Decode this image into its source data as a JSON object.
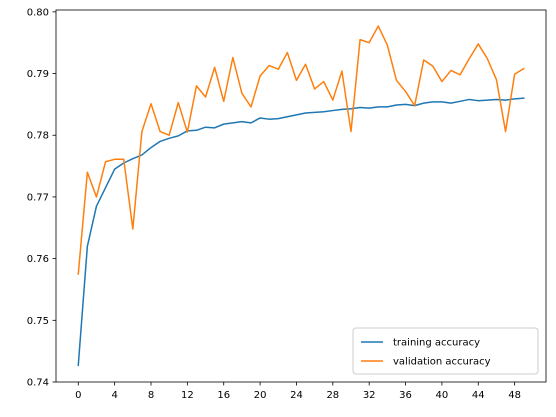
{
  "chart_data": {
    "type": "line",
    "x": [
      0,
      1,
      2,
      3,
      4,
      5,
      6,
      7,
      8,
      9,
      10,
      11,
      12,
      13,
      14,
      15,
      16,
      17,
      18,
      19,
      20,
      21,
      22,
      23,
      24,
      25,
      26,
      27,
      28,
      29,
      30,
      31,
      32,
      33,
      34,
      35,
      36,
      37,
      38,
      39,
      40,
      41,
      42,
      43,
      44,
      45,
      46,
      47,
      48,
      49
    ],
    "xticks": [
      0,
      4,
      8,
      12,
      16,
      20,
      24,
      28,
      32,
      36,
      40,
      44,
      48
    ],
    "yticks": [
      0.74,
      0.75,
      0.76,
      0.77,
      0.78,
      0.79,
      0.8
    ],
    "ytick_labels": [
      "0.74",
      "0.75",
      "0.76",
      "0.77",
      "0.78",
      "0.79",
      "0.80"
    ],
    "xlim": [
      -2.45,
      51.45
    ],
    "ylim": [
      0.74,
      0.8003
    ],
    "grid": false,
    "legend_position": "lower right",
    "series": [
      {
        "name": "training accuracy",
        "color": "#1f77b4",
        "values": [
          0.7427,
          0.762,
          0.7685,
          0.7715,
          0.7745,
          0.7755,
          0.7762,
          0.7768,
          0.778,
          0.779,
          0.7795,
          0.7799,
          0.7807,
          0.7808,
          0.7813,
          0.7812,
          0.7818,
          0.782,
          0.7822,
          0.782,
          0.7828,
          0.7826,
          0.7827,
          0.783,
          0.7833,
          0.7836,
          0.7837,
          0.7838,
          0.784,
          0.7842,
          0.7843,
          0.7845,
          0.7844,
          0.7846,
          0.7846,
          0.7849,
          0.785,
          0.7848,
          0.7852,
          0.7854,
          0.7854,
          0.7852,
          0.7855,
          0.7858,
          0.7856,
          0.7857,
          0.7858,
          0.7857,
          0.7859,
          0.786
        ]
      },
      {
        "name": "validation accuracy",
        "color": "#ff7f0e",
        "values": [
          0.7575,
          0.774,
          0.77,
          0.7757,
          0.7761,
          0.7761,
          0.7648,
          0.7806,
          0.7851,
          0.7806,
          0.78,
          0.7853,
          0.7805,
          0.788,
          0.7862,
          0.791,
          0.7855,
          0.7926,
          0.7868,
          0.7846,
          0.7896,
          0.7913,
          0.7907,
          0.7934,
          0.7889,
          0.7915,
          0.7875,
          0.7887,
          0.7857,
          0.7904,
          0.7806,
          0.7955,
          0.795,
          0.7977,
          0.7946,
          0.7889,
          0.7871,
          0.7848,
          0.7922,
          0.7912,
          0.7887,
          0.7905,
          0.7898,
          0.7924,
          0.7948,
          0.7924,
          0.789,
          0.7806,
          0.7899,
          0.7908
        ]
      }
    ]
  }
}
